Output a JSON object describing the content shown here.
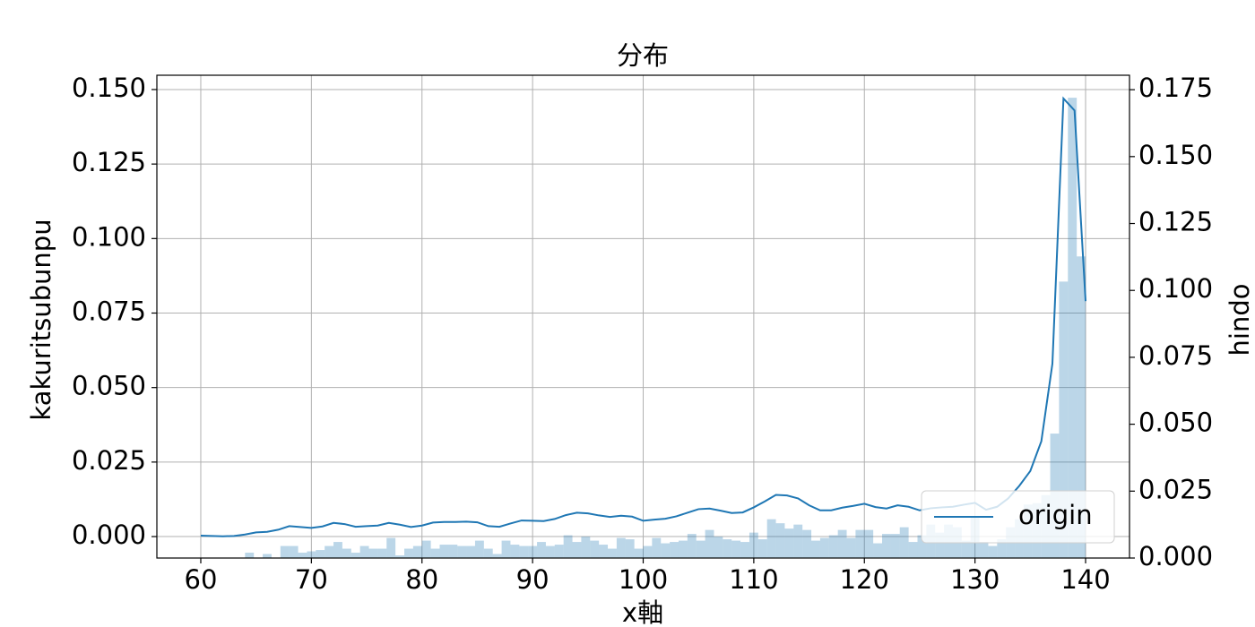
{
  "chart_data": {
    "type": "line",
    "title": "分布",
    "x_label": "x軸",
    "y_label": "kakuritsubunpu",
    "y2_label": "hindo",
    "x": [
      60,
      61,
      62,
      63,
      64,
      65,
      66,
      67,
      68,
      69,
      70,
      71,
      72,
      73,
      74,
      75,
      76,
      77,
      78,
      79,
      80,
      81,
      82,
      83,
      84,
      85,
      86,
      87,
      88,
      89,
      90,
      91,
      92,
      93,
      94,
      95,
      96,
      97,
      98,
      99,
      100,
      101,
      102,
      103,
      104,
      105,
      106,
      107,
      108,
      109,
      110,
      111,
      112,
      113,
      114,
      115,
      116,
      117,
      118,
      119,
      120,
      121,
      122,
      123,
      124,
      125,
      126,
      127,
      128,
      129,
      130,
      131,
      132,
      133,
      134,
      135,
      136,
      137,
      138,
      139,
      140
    ],
    "series": [
      {
        "name": "origin",
        "color": "#1f77b4",
        "values": [
          0.0003,
          0.0002,
          0.0001,
          0.0002,
          0.0007,
          0.0014,
          0.0016,
          0.0023,
          0.0035,
          0.0032,
          0.0029,
          0.0034,
          0.0046,
          0.0042,
          0.0033,
          0.0035,
          0.0037,
          0.0046,
          0.004,
          0.0032,
          0.0037,
          0.0047,
          0.0049,
          0.0049,
          0.005,
          0.0048,
          0.0035,
          0.0033,
          0.0044,
          0.0054,
          0.0053,
          0.0052,
          0.0059,
          0.0072,
          0.008,
          0.0078,
          0.0071,
          0.0066,
          0.007,
          0.0067,
          0.0053,
          0.0057,
          0.006,
          0.0068,
          0.008,
          0.0092,
          0.0094,
          0.0087,
          0.0079,
          0.0081,
          0.0098,
          0.0118,
          0.014,
          0.0138,
          0.0128,
          0.0105,
          0.0088,
          0.0088,
          0.0097,
          0.0103,
          0.011,
          0.0099,
          0.0094,
          0.0105,
          0.01,
          0.0088,
          0.0095,
          0.0098,
          0.01,
          0.0107,
          0.0113,
          0.009,
          0.01,
          0.0128,
          0.017,
          0.022,
          0.032,
          0.058,
          0.147,
          0.143,
          0.079
        ]
      }
    ],
    "histogram": {
      "type": "histogram",
      "axis": "y2",
      "color": "#1f77b4",
      "alpha": 0.3,
      "bins": [
        60,
        60.8,
        61.6,
        62.4,
        63.2,
        64,
        64.8,
        65.6,
        66.4,
        67.2,
        68,
        68.8,
        69.6,
        70.4,
        71.2,
        72,
        72.8,
        73.6,
        74.4,
        75.2,
        76,
        76.8,
        77.6,
        78.4,
        79.2,
        80,
        80.8,
        81.6,
        82.4,
        83.2,
        84,
        84.8,
        85.6,
        86.4,
        87.2,
        88,
        88.8,
        89.6,
        90.4,
        91.2,
        92,
        92.8,
        93.6,
        94.4,
        95.2,
        96,
        96.8,
        97.6,
        98.4,
        99.2,
        100,
        100.8,
        101.6,
        102.4,
        103.2,
        104,
        104.8,
        105.6,
        106.4,
        107.2,
        108,
        108.8,
        109.6,
        110.4,
        111.2,
        112,
        112.8,
        113.6,
        114.4,
        115.2,
        116,
        116.8,
        117.6,
        118.4,
        119.2,
        120,
        120.8,
        121.6,
        122.4,
        123.2,
        124,
        124.8,
        125.6,
        126.4,
        127.2,
        128,
        128.8,
        129.6,
        130.4,
        131.2,
        132,
        132.8,
        133.6,
        134.4,
        135.2,
        136,
        136.8,
        137.6,
        138.4,
        139.2,
        140
      ],
      "values": [
        0,
        0,
        0,
        0,
        0,
        0.002,
        0,
        0.0015,
        0,
        0.0045,
        0.0045,
        0.002,
        0.0025,
        0.003,
        0.0045,
        0.006,
        0.0035,
        0.002,
        0.0045,
        0.0035,
        0.0035,
        0.0075,
        0.001,
        0.0035,
        0.0045,
        0.0065,
        0.0035,
        0.005,
        0.005,
        0.0045,
        0.0045,
        0.0065,
        0.0035,
        0.0015,
        0.0065,
        0.005,
        0.0045,
        0.0045,
        0.006,
        0.0045,
        0.005,
        0.0085,
        0.006,
        0.008,
        0.0065,
        0.005,
        0.0035,
        0.0075,
        0.007,
        0.0035,
        0.0045,
        0.0075,
        0.0055,
        0.006,
        0.0065,
        0.009,
        0.0065,
        0.0105,
        0.008,
        0.007,
        0.0065,
        0.006,
        0.0095,
        0.007,
        0.0145,
        0.013,
        0.011,
        0.0125,
        0.0105,
        0.0065,
        0.0075,
        0.0085,
        0.0105,
        0.0075,
        0.0105,
        0.0105,
        0.0055,
        0.009,
        0.009,
        0.0115,
        0.006,
        0.0085,
        0.0125,
        0.0095,
        0.0125,
        0.0115,
        0.0065,
        0.0155,
        0.006,
        0.0045,
        0.007,
        0.0115,
        0.0145,
        0.02,
        0.0205,
        0.0235,
        0.0465,
        0.1033,
        0.172,
        0.1127
      ]
    },
    "xlim": [
      56.03,
      143.97
    ],
    "ylim": [
      -0.0072,
      0.1548
    ],
    "y2lim": [
      0,
      0.1804
    ],
    "xticks": [
      60,
      70,
      80,
      90,
      100,
      110,
      120,
      130,
      140
    ],
    "yticks": [
      {
        "value": 0,
        "label": "0.000"
      },
      {
        "value": 0.025,
        "label": "0.025"
      },
      {
        "value": 0.05,
        "label": "0.050"
      },
      {
        "value": 0.075,
        "label": "0.075"
      },
      {
        "value": 0.1,
        "label": "0.100"
      },
      {
        "value": 0.125,
        "label": "0.125"
      },
      {
        "value": 0.15,
        "label": "0.150"
      }
    ],
    "y2ticks": [
      {
        "value": 0,
        "label": "0.000"
      },
      {
        "value": 0.025,
        "label": "0.025"
      },
      {
        "value": 0.05,
        "label": "0.050"
      },
      {
        "value": 0.075,
        "label": "0.075"
      },
      {
        "value": 0.1,
        "label": "0.100"
      },
      {
        "value": 0.125,
        "label": "0.125"
      },
      {
        "value": 0.15,
        "label": "0.150"
      },
      {
        "value": 0.175,
        "label": "0.175"
      }
    ],
    "grid": true,
    "legend_position": "lower right"
  }
}
